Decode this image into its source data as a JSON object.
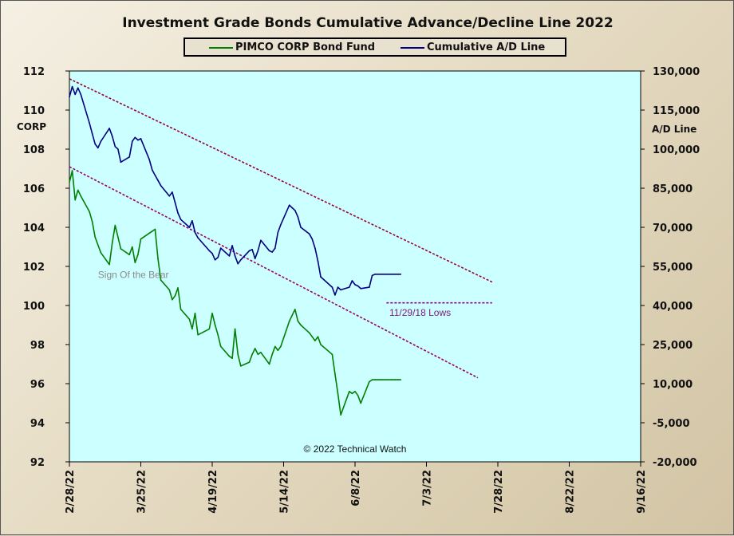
{
  "chart_data": {
    "type": "line",
    "title": "Investment Grade Bonds Cumulative Advance/Decline Line 2022",
    "x_ticks": [
      "2/28/22",
      "3/25/22",
      "4/19/22",
      "5/14/22",
      "6/8/22",
      "7/3/22",
      "7/28/22",
      "8/22/22",
      "9/16/22"
    ],
    "left_axis": {
      "label": "CORP",
      "ylim": [
        92,
        112
      ],
      "ticks": [
        "112",
        "110",
        "108",
        "106",
        "104",
        "102",
        "100",
        "98",
        "96",
        "94",
        "92"
      ]
    },
    "right_axis": {
      "label": "A/D Line",
      "ylim": [
        -20000,
        130000
      ],
      "ticks": [
        "130,000",
        "115,000",
        "100,000",
        "85,000",
        "70,000",
        "55,000",
        "40,000",
        "25,000",
        "10,000",
        "-5,000",
        "-20,000"
      ]
    },
    "series": [
      {
        "name": "PIMCO CORP Bond Fund",
        "axis": "left",
        "color": "#008000",
        "x": [
          "2022-02-28",
          "2022-03-01",
          "2022-03-02",
          "2022-03-03",
          "2022-03-04",
          "2022-03-07",
          "2022-03-08",
          "2022-03-09",
          "2022-03-10",
          "2022-03-11",
          "2022-03-14",
          "2022-03-15",
          "2022-03-16",
          "2022-03-17",
          "2022-03-18",
          "2022-03-21",
          "2022-03-22",
          "2022-03-23",
          "2022-03-24",
          "2022-03-25",
          "2022-03-28",
          "2022-03-29",
          "2022-03-30",
          "2022-03-31",
          "2022-04-01",
          "2022-04-04",
          "2022-04-05",
          "2022-04-06",
          "2022-04-07",
          "2022-04-08",
          "2022-04-11",
          "2022-04-12",
          "2022-04-13",
          "2022-04-14",
          "2022-04-18",
          "2022-04-19",
          "2022-04-20",
          "2022-04-21",
          "2022-04-22",
          "2022-04-25",
          "2022-04-26",
          "2022-04-27",
          "2022-04-28",
          "2022-04-29",
          "2022-05-02",
          "2022-05-03",
          "2022-05-04",
          "2022-05-05",
          "2022-05-06",
          "2022-05-09",
          "2022-05-10",
          "2022-05-11",
          "2022-05-12",
          "2022-05-13",
          "2022-05-16",
          "2022-05-17",
          "2022-05-18",
          "2022-05-19",
          "2022-05-20",
          "2022-05-23",
          "2022-05-24",
          "2022-05-25",
          "2022-05-26",
          "2022-05-27",
          "2022-05-31",
          "2022-06-01",
          "2022-06-02",
          "2022-06-03",
          "2022-06-06",
          "2022-06-07",
          "2022-06-08",
          "2022-06-09",
          "2022-06-10",
          "2022-06-13",
          "2022-06-14",
          "2022-06-15",
          "2022-06-16",
          "2022-06-17",
          "2022-06-21",
          "2022-06-22",
          "2022-06-23",
          "2022-06-24"
        ],
        "values": [
          106.3,
          106.9,
          105.4,
          105.9,
          105.6,
          104.8,
          104.3,
          103.5,
          103.1,
          102.7,
          102.1,
          103.2,
          104.1,
          103.5,
          102.9,
          102.6,
          103.0,
          102.2,
          102.6,
          103.4,
          103.7,
          103.8,
          103.9,
          102.4,
          101.3,
          100.8,
          100.3,
          100.5,
          100.9,
          99.8,
          99.3,
          98.8,
          99.6,
          98.5,
          98.8,
          99.6,
          99.0,
          98.5,
          97.9,
          97.4,
          97.3,
          98.8,
          97.5,
          96.9,
          97.1,
          97.5,
          97.8,
          97.5,
          97.6,
          97.0,
          97.5,
          97.9,
          97.7,
          97.9,
          99.2,
          99.5,
          99.8,
          99.2,
          99.0,
          98.6,
          98.4,
          98.2,
          98.4,
          98.0,
          97.5,
          96.5,
          95.5,
          94.4,
          95.6,
          95.5,
          95.6,
          95.4,
          95.0,
          96.1,
          96.2,
          96.2,
          96.2,
          96.2,
          96.2,
          96.2,
          96.2,
          96.2
        ]
      },
      {
        "name": "Cumulative A/D Line",
        "axis": "right",
        "color": "#000080",
        "x": [
          "2022-02-28",
          "2022-03-01",
          "2022-03-02",
          "2022-03-03",
          "2022-03-04",
          "2022-03-07",
          "2022-03-08",
          "2022-03-09",
          "2022-03-10",
          "2022-03-11",
          "2022-03-14",
          "2022-03-15",
          "2022-03-16",
          "2022-03-17",
          "2022-03-18",
          "2022-03-21",
          "2022-03-22",
          "2022-03-23",
          "2022-03-24",
          "2022-03-25",
          "2022-03-28",
          "2022-03-29",
          "2022-03-30",
          "2022-03-31",
          "2022-04-01",
          "2022-04-04",
          "2022-04-05",
          "2022-04-06",
          "2022-04-07",
          "2022-04-08",
          "2022-04-11",
          "2022-04-12",
          "2022-04-13",
          "2022-04-14",
          "2022-04-18",
          "2022-04-19",
          "2022-04-20",
          "2022-04-21",
          "2022-04-22",
          "2022-04-25",
          "2022-04-26",
          "2022-04-27",
          "2022-04-28",
          "2022-04-29",
          "2022-05-02",
          "2022-05-03",
          "2022-05-04",
          "2022-05-05",
          "2022-05-06",
          "2022-05-09",
          "2022-05-10",
          "2022-05-11",
          "2022-05-12",
          "2022-05-13",
          "2022-05-16",
          "2022-05-17",
          "2022-05-18",
          "2022-05-19",
          "2022-05-20",
          "2022-05-23",
          "2022-05-24",
          "2022-05-25",
          "2022-05-26",
          "2022-05-27",
          "2022-05-31",
          "2022-06-01",
          "2022-06-02",
          "2022-06-03",
          "2022-06-06",
          "2022-06-07",
          "2022-06-08",
          "2022-06-09",
          "2022-06-10",
          "2022-06-13",
          "2022-06-14",
          "2022-06-15",
          "2022-06-16",
          "2022-06-17",
          "2022-06-21",
          "2022-06-22",
          "2022-06-23",
          "2022-06-24"
        ],
        "values": [
          120000,
          124000,
          121000,
          123500,
          121000,
          110000,
          106000,
          102000,
          100500,
          103000,
          108000,
          105000,
          101000,
          100000,
          95000,
          97000,
          103000,
          104500,
          103500,
          104000,
          96000,
          92000,
          90000,
          88000,
          86000,
          82000,
          83500,
          79500,
          75500,
          73000,
          70000,
          72500,
          68000,
          66000,
          61000,
          60000,
          57500,
          58500,
          62000,
          59000,
          63000,
          59000,
          56000,
          57500,
          61000,
          61500,
          58000,
          61000,
          65000,
          61000,
          60500,
          62000,
          68000,
          71000,
          78500,
          77500,
          76500,
          74000,
          70000,
          67500,
          65500,
          62000,
          57000,
          51000,
          47000,
          44000,
          47000,
          46000,
          47000,
          49500,
          48000,
          47500,
          46500,
          47000,
          51500,
          52000,
          52000,
          52000,
          52000,
          52000,
          52000,
          52000
        ]
      }
    ],
    "trendlines": [
      {
        "axis": "right",
        "style": "dashed",
        "color": "#990033",
        "from": {
          "x": "2022-02-28",
          "y": 127000
        },
        "to": {
          "x": "2022-07-26",
          "y": 49000
        }
      },
      {
        "axis": "left",
        "style": "dashed",
        "color": "#990066",
        "from": {
          "x": "2022-02-28",
          "y": 107.1
        },
        "to": {
          "x": "2022-07-21",
          "y": 96.3
        }
      },
      {
        "axis": "right",
        "style": "dashed",
        "color": "#990099",
        "from": {
          "x": "2022-06-19",
          "y": 41000
        },
        "to": {
          "x": "2022-07-26",
          "y": 41000
        }
      }
    ],
    "annotations": [
      {
        "text": "Sign Of the Bear",
        "color": "#8a8a8a",
        "x": "2022-03-10",
        "y_left": 101.4
      },
      {
        "text": "11/29/18 Lows",
        "color": "#7a1a7a",
        "x": "2022-06-20",
        "y_right": 36000
      },
      {
        "text": "© 2022 Technical Watch",
        "color": "#111111",
        "x": "2022-05-21",
        "y_left": 92.5
      }
    ],
    "plot_background": "#ccffff",
    "grid": false,
    "legend": "top-center"
  }
}
